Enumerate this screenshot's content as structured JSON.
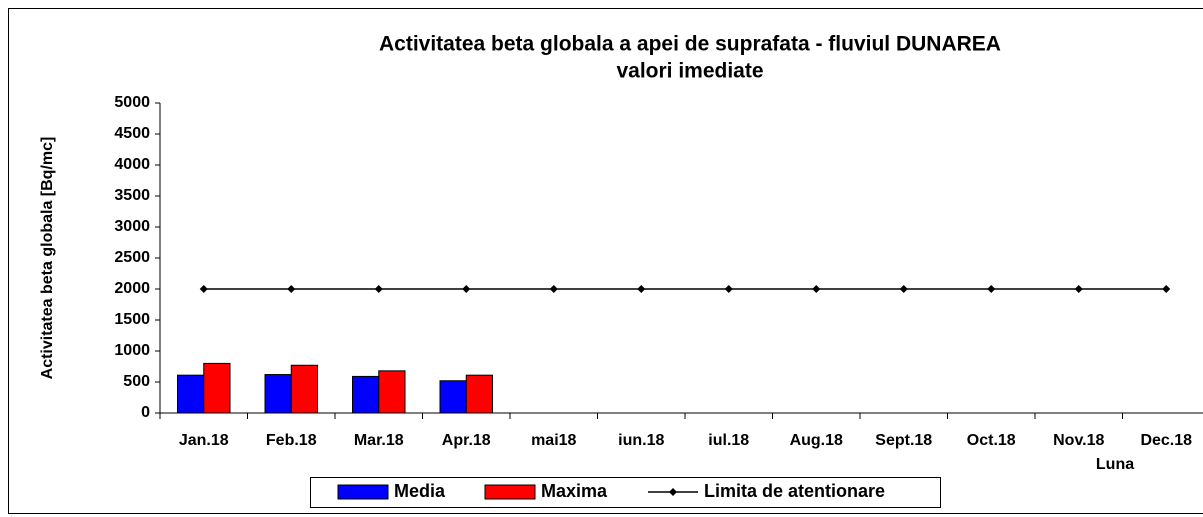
{
  "chart_data": {
    "type": "bar",
    "title": [
      "Activitatea beta globala a apei de suprafata - fluviul DUNAREA",
      "valori imediate"
    ],
    "y_label": "Activitatea beta globala [Bq/mc]",
    "x_label": "Luna",
    "categories": [
      "Jan.18",
      "Feb.18",
      "Mar.18",
      "Apr.18",
      "mai18",
      "iun.18",
      "iul.18",
      "Aug.18",
      "Sept.18",
      "Oct.18",
      "Nov.18",
      "Dec.18"
    ],
    "series": [
      {
        "name": "Media",
        "color": "#0000ff",
        "type": "bar",
        "values": [
          610,
          620,
          590,
          520,
          null,
          null,
          null,
          null,
          null,
          null,
          null,
          null
        ]
      },
      {
        "name": "Maxima",
        "color": "#ff0000",
        "type": "bar",
        "values": [
          800,
          770,
          680,
          610,
          null,
          null,
          null,
          null,
          null,
          null,
          null,
          null
        ]
      },
      {
        "name": "Limita de atentionare",
        "color": "#000000",
        "type": "line",
        "values": [
          2000,
          2000,
          2000,
          2000,
          2000,
          2000,
          2000,
          2000,
          2000,
          2000,
          2000,
          2000
        ]
      }
    ],
    "ylim": [
      0,
      5000
    ],
    "yticks": [
      0,
      500,
      1000,
      1500,
      2000,
      2500,
      3000,
      3500,
      4000,
      4500,
      5000
    ],
    "legend": "bottom"
  }
}
